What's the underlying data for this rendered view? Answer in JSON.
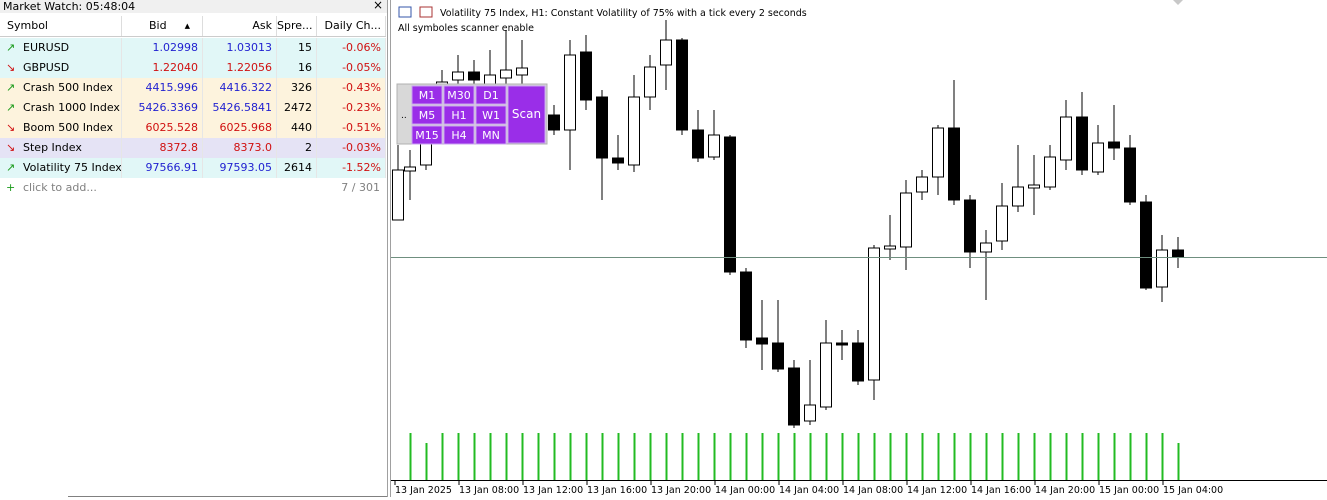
{
  "market_watch": {
    "title": "Market Watch: 05:48:04",
    "columns": [
      "Symbol",
      "Bid",
      "Ask",
      "Spre...",
      "Daily Ch..."
    ],
    "rows": [
      [
        "EURUSD",
        "1.02998",
        "1.03013",
        "15",
        "-0.06%"
      ],
      [
        "GBPUSD",
        "1.22040",
        "1.22056",
        "16",
        "-0.05%"
      ],
      [
        "Crash 500 Index",
        "4415.996",
        "4416.322",
        "326",
        "-0.43%"
      ],
      [
        "Crash 1000 Index",
        "5426.3369",
        "5426.5841",
        "2472",
        "-0.23%"
      ],
      [
        "Boom 500 Index",
        "6025.528",
        "6025.968",
        "440",
        "-0.51%"
      ],
      [
        "Step Index",
        "8372.8",
        "8373.0",
        "2",
        "-0.03%"
      ],
      [
        "Volatility 75 Index",
        "97566.91",
        "97593.05",
        "2614",
        "-1.52%"
      ]
    ],
    "add_label": "click to add...",
    "count": "7 / 301"
  },
  "chart": {
    "title": "Volatility 75 Index, H1:  Constant Volatility of 75% with a tick every 2 seconds",
    "status": "All symboles scanner enable",
    "timeframes": [
      "M1",
      "M30",
      "D1",
      "M5",
      "H1",
      "W1",
      "M15",
      "H4",
      "MN"
    ],
    "scan_button": "Scan",
    "x_labels": [
      "13 Jan 2025",
      "13 Jan 08:00",
      "13 Jan 12:00",
      "13 Jan 16:00",
      "13 Jan 20:00",
      "14 Jan 00:00",
      "14 Jan 04:00",
      "14 Jan 08:00",
      "14 Jan 12:00",
      "14 Jan 16:00",
      "14 Jan 20:00",
      "15 Jan 00:00",
      "15 Jan 04:00"
    ]
  }
}
